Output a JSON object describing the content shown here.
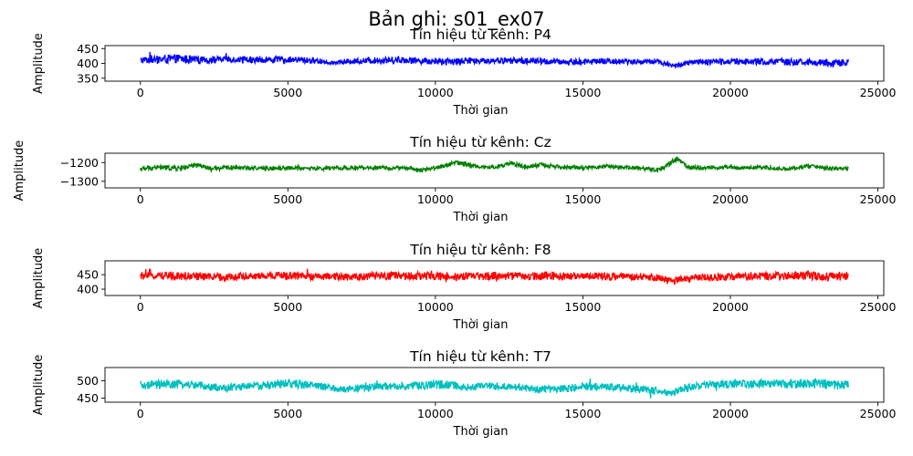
{
  "figure": {
    "suptitle": "Bản ghi: s01_ex07"
  },
  "chart_data": [
    {
      "type": "line",
      "title": "Tín hiệu từ kênh: P4",
      "xlabel": "Thời gian",
      "ylabel": "Amplitude",
      "color": "#0000ff",
      "xlim": [
        -1200,
        25200
      ],
      "ylim": [
        340,
        460
      ],
      "xticks": [
        0,
        5000,
        10000,
        15000,
        20000,
        25000
      ],
      "xtick_labels": [
        "0",
        "5000",
        "10000",
        "15000",
        "20000",
        "25000"
      ],
      "yticks": [
        350,
        400,
        450
      ],
      "ytick_labels": [
        "350",
        "400",
        "450"
      ],
      "series": [
        {
          "x": [
            0,
            200,
            600,
            1300,
            2000,
            3000,
            4000,
            5000,
            6000,
            6500,
            7000,
            8000,
            8800,
            9500,
            10300,
            11000,
            12000,
            12800,
            13600,
            14500,
            15000,
            16000,
            17000,
            17500,
            18100,
            18600,
            19000,
            20000,
            21000,
            22000,
            23000,
            23700,
            24000
          ],
          "y": [
            410,
            412,
            413,
            416,
            410,
            414,
            412,
            413,
            409,
            402,
            407,
            410,
            412,
            409,
            405,
            408,
            410,
            409,
            407,
            404,
            406,
            407,
            405,
            408,
            391,
            402,
            405,
            407,
            406,
            405,
            403,
            400,
            404
          ],
          "band": [
            22,
            26,
            28,
            30,
            26,
            22,
            22,
            22,
            20,
            14,
            18,
            22,
            24,
            22,
            24,
            20,
            20,
            22,
            22,
            20,
            22,
            20,
            18,
            18,
            16,
            18,
            20,
            20,
            22,
            22,
            22,
            26,
            22
          ]
        }
      ]
    },
    {
      "type": "line",
      "title": "Tín hiệu từ kênh: Cz",
      "xlabel": "Thời gian",
      "ylabel": "Amplitude",
      "color": "#008000",
      "xlim": [
        -1200,
        25200
      ],
      "ylim": [
        -1335,
        -1150
      ],
      "xticks": [
        0,
        5000,
        10000,
        15000,
        20000,
        25000
      ],
      "xtick_labels": [
        "0",
        "5000",
        "10000",
        "15000",
        "20000",
        "25000"
      ],
      "yticks": [
        -1200,
        -1300
      ],
      "ytick_labels": [
        "−1200",
        "−1300"
      ],
      "series": [
        {
          "x": [
            0,
            500,
            1300,
            2000,
            2400,
            3000,
            4000,
            5000,
            6000,
            7000,
            8000,
            9000,
            9500,
            10000,
            10700,
            11300,
            12000,
            12600,
            13100,
            13600,
            14200,
            15000,
            15500,
            16000,
            17000,
            17600,
            18200,
            18600,
            19500,
            20000,
            20400,
            21000,
            22000,
            22500,
            23500,
            24000
          ],
          "y": [
            -1235,
            -1225,
            -1230,
            -1215,
            -1235,
            -1225,
            -1230,
            -1228,
            -1232,
            -1228,
            -1228,
            -1230,
            -1240,
            -1228,
            -1200,
            -1218,
            -1225,
            -1205,
            -1225,
            -1212,
            -1224,
            -1228,
            -1222,
            -1220,
            -1232,
            -1238,
            -1180,
            -1225,
            -1228,
            -1222,
            -1230,
            -1224,
            -1235,
            -1220,
            -1232,
            -1230
          ],
          "band": [
            24,
            26,
            30,
            26,
            24,
            22,
            20,
            22,
            20,
            20,
            20,
            20,
            22,
            22,
            28,
            24,
            22,
            26,
            22,
            24,
            22,
            20,
            20,
            20,
            20,
            22,
            30,
            22,
            20,
            20,
            20,
            20,
            20,
            24,
            22,
            20
          ]
        }
      ]
    },
    {
      "type": "line",
      "title": "Tín hiệu từ kênh: F8",
      "xlabel": "Thời gian",
      "ylabel": "Amplitude",
      "color": "#ff0000",
      "xlim": [
        -1200,
        25200
      ],
      "ylim": [
        378,
        498
      ],
      "xticks": [
        0,
        5000,
        10000,
        15000,
        20000,
        25000
      ],
      "xtick_labels": [
        "0",
        "5000",
        "10000",
        "15000",
        "20000",
        "25000"
      ],
      "yticks": [
        400,
        450
      ],
      "ytick_labels": [
        "400",
        "450"
      ],
      "series": [
        {
          "x": [
            0,
            500,
            1300,
            2000,
            2800,
            3500,
            4200,
            5000,
            6000,
            7000,
            8000,
            9000,
            10000,
            10500,
            11000,
            12000,
            13000,
            13600,
            14500,
            15000,
            16000,
            17000,
            17500,
            18000,
            18500,
            19000,
            20000,
            21000,
            22000,
            22600,
            23500,
            24000
          ],
          "y": [
            445,
            446,
            447,
            444,
            440,
            445,
            446,
            447,
            444,
            442,
            446,
            445,
            447,
            441,
            444,
            446,
            445,
            447,
            444,
            446,
            444,
            442,
            440,
            428,
            436,
            440,
            443,
            445,
            446,
            447,
            442,
            446
          ],
          "band": [
            26,
            26,
            30,
            28,
            28,
            26,
            26,
            30,
            26,
            26,
            26,
            28,
            32,
            30,
            26,
            28,
            28,
            30,
            26,
            26,
            26,
            24,
            24,
            24,
            24,
            24,
            24,
            26,
            28,
            30,
            34,
            30
          ]
        }
      ]
    },
    {
      "type": "line",
      "title": "Tín hiệu từ kênh: T7",
      "xlabel": "Thời gian",
      "ylabel": "Amplitude",
      "color": "#00bfbf",
      "xlim": [
        -1200,
        25200
      ],
      "ylim": [
        438,
        538
      ],
      "xticks": [
        0,
        5000,
        10000,
        15000,
        20000,
        25000
      ],
      "xtick_labels": [
        "0",
        "5000",
        "10000",
        "15000",
        "20000",
        "25000"
      ],
      "yticks": [
        450,
        500
      ],
      "ytick_labels": [
        "450",
        "500"
      ],
      "series": [
        {
          "x": [
            0,
            500,
            1300,
            2000,
            2800,
            3500,
            4200,
            5000,
            6000,
            6800,
            7500,
            8500,
            9500,
            10300,
            11000,
            12000,
            13000,
            13500,
            14500,
            15000,
            16000,
            17000,
            17500,
            18000,
            18400,
            19000,
            20000,
            21000,
            22000,
            22500,
            23500,
            24000
          ],
          "y": [
            485,
            488,
            490,
            487,
            478,
            484,
            486,
            492,
            486,
            474,
            480,
            484,
            485,
            490,
            482,
            484,
            480,
            474,
            478,
            484,
            482,
            476,
            470,
            462,
            478,
            486,
            490,
            492,
            490,
            492,
            488,
            487
          ],
          "band": [
            22,
            26,
            26,
            22,
            22,
            22,
            22,
            28,
            22,
            20,
            22,
            22,
            24,
            26,
            22,
            22,
            22,
            22,
            22,
            24,
            22,
            22,
            20,
            18,
            22,
            24,
            24,
            24,
            26,
            28,
            30,
            26
          ]
        }
      ]
    }
  ]
}
